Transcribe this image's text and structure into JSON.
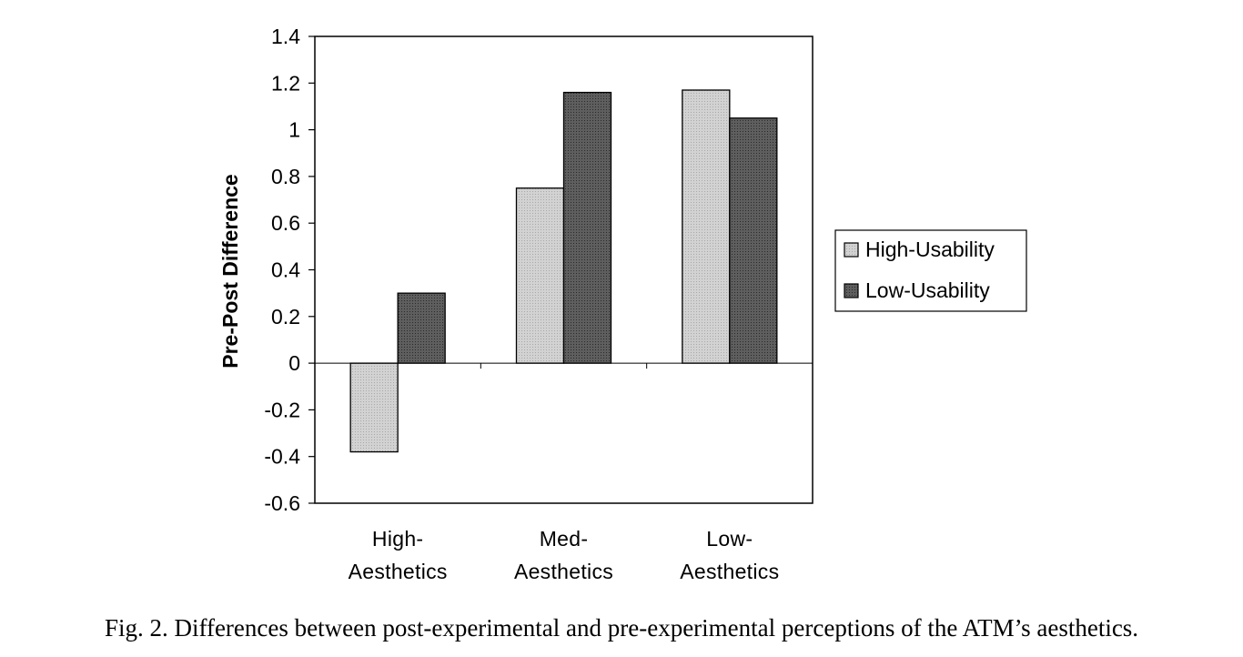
{
  "chart_data": {
    "type": "bar",
    "ylabel": "Pre-Post Difference",
    "xlabel": "",
    "ylim": [
      -0.6,
      1.4
    ],
    "yticks": [
      -0.6,
      -0.4,
      -0.2,
      0,
      0.2,
      0.4,
      0.6,
      0.8,
      1,
      1.2,
      1.4
    ],
    "ytick_labels": [
      "-0.6",
      "-0.4",
      "-0.2",
      "0",
      "0.2",
      "0.4",
      "0.6",
      "0.8",
      "1",
      "1.2",
      "1.4"
    ],
    "categories": [
      {
        "line1": "High-",
        "line2": "Aesthetics"
      },
      {
        "line1": "Med-",
        "line2": "Aesthetics"
      },
      {
        "line1": "Low-",
        "line2": "Aesthetics"
      }
    ],
    "series": [
      {
        "name": "High-Usability",
        "values": [
          -0.38,
          0.75,
          1.17
        ],
        "color": "#c8c8c8"
      },
      {
        "name": "Low-Usability",
        "values": [
          0.3,
          1.16,
          1.05
        ],
        "color": "#555555"
      }
    ],
    "legend_position": "right",
    "grid": false
  },
  "caption": "Fig. 2. Differences between post-experimental and pre-experimental perceptions of the ATM’s aesthetics."
}
